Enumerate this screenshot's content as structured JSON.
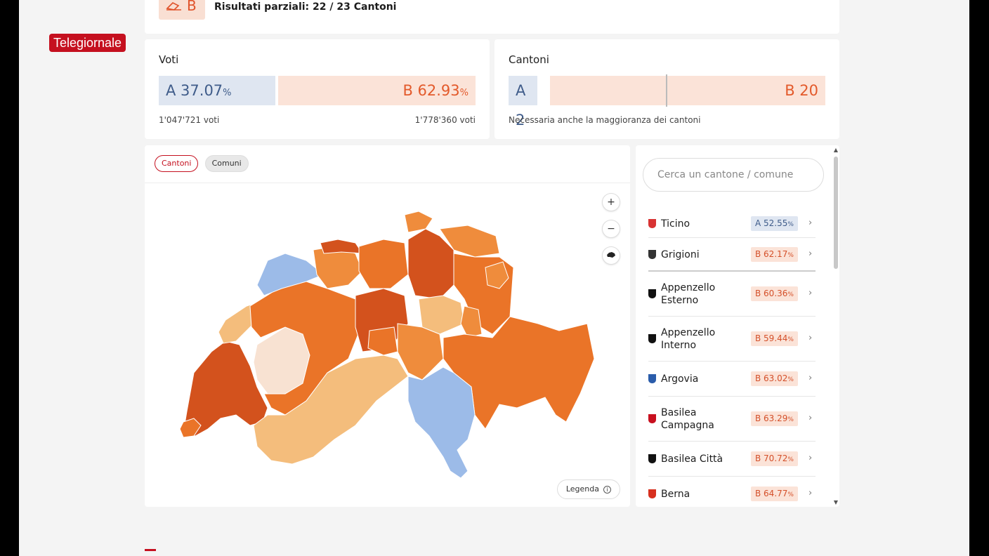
{
  "broadcaster": {
    "label": "Telegiornale"
  },
  "header": {
    "winner_letter": "B",
    "partial_results": "Risultati parziali: 22 / 23 Cantoni"
  },
  "votes": {
    "title": "Voti",
    "a_label": "A 37.07",
    "a_pct_sign": "%",
    "a_share": 37.07,
    "b_label": "B 62.93",
    "b_pct_sign": "%",
    "b_share": 62.93,
    "a_count": "1'047'721 voti",
    "b_count": "1'778'360 voti"
  },
  "cantons_summary": {
    "title": "Cantoni",
    "a_label": "A 2",
    "a_value": 2,
    "b_label": "B 20",
    "b_value": 20,
    "note": "Necessaria anche la maggioranza dei cantoni"
  },
  "map": {
    "tabs": [
      {
        "label": "Cantoni"
      },
      {
        "label": "Comuni"
      }
    ],
    "zoom_in": "+",
    "zoom_out": "−",
    "legend_label": "Legenda",
    "colors": {
      "a_light": "#9cbbe8",
      "b_light": "#f4bd7c",
      "b_mid": "#ef8c3c",
      "b_strong": "#ea7428",
      "b_dark": "#d3521d",
      "b_pale": "#f8e2d2"
    }
  },
  "list": {
    "search_placeholder": "Cerca un cantone / comune",
    "rows": [
      {
        "name": "Ticino",
        "value": "A 52.55",
        "side": "a",
        "flag_color": "#d83333"
      },
      {
        "name": "Grigioni",
        "value": "B 62.17",
        "side": "b",
        "flag_color": "#333333"
      },
      {
        "name": "Appenzello Esterno",
        "value": "B 60.36",
        "side": "b",
        "flag_color": "#111111"
      },
      {
        "name": "Appenzello Interno",
        "value": "B 59.44",
        "side": "b",
        "flag_color": "#111111"
      },
      {
        "name": "Argovia",
        "value": "B 63.02",
        "side": "b",
        "flag_color": "#2a5caa"
      },
      {
        "name": "Basilea Campagna",
        "value": "B 63.29",
        "side": "b",
        "flag_color": "#c8101f"
      },
      {
        "name": "Basilea Città",
        "value": "B 70.72",
        "side": "b",
        "flag_color": "#111111"
      },
      {
        "name": "Berna",
        "value": "B 64.77",
        "side": "b",
        "flag_color": "#d7301f"
      }
    ],
    "pct_sign": "%"
  }
}
